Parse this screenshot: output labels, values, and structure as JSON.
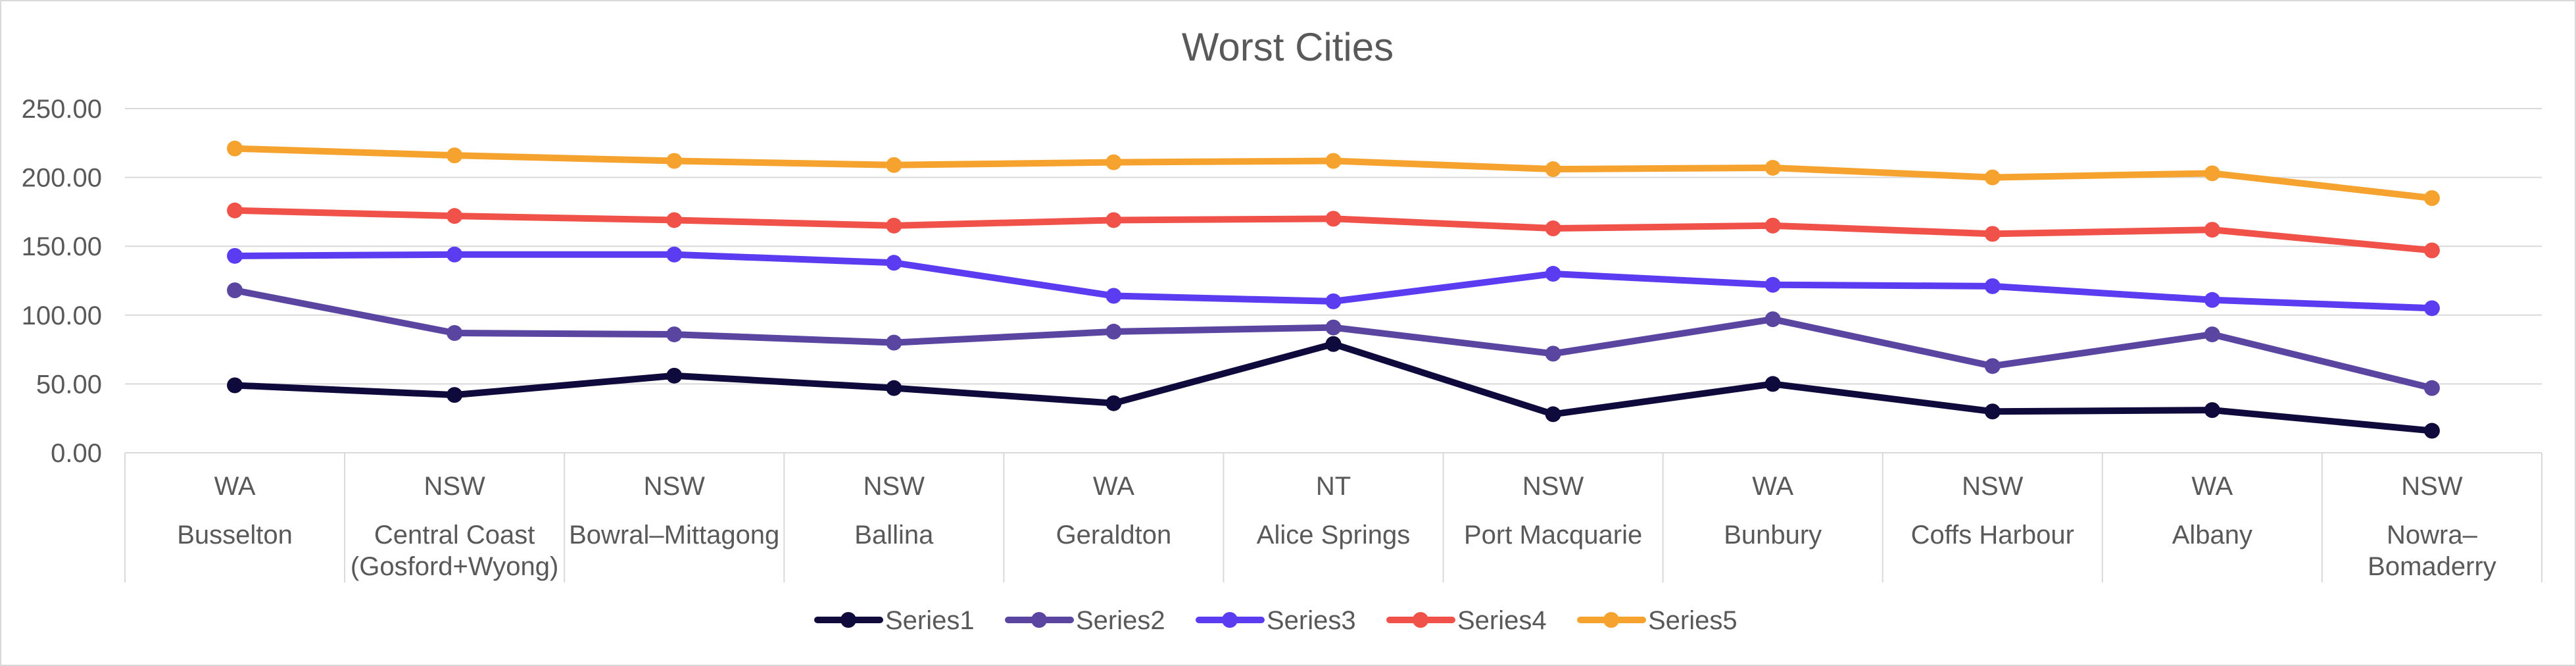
{
  "chart_data": {
    "type": "line",
    "title": "Worst Cities",
    "xlabel": "",
    "ylabel": "",
    "ylim": [
      0,
      250
    ],
    "yticks": [
      "0.00",
      "50.00",
      "100.00",
      "150.00",
      "200.00",
      "250.00"
    ],
    "grid": true,
    "legend_position": "bottom",
    "categories": [
      {
        "state": "WA",
        "city": [
          "Busselton"
        ]
      },
      {
        "state": "NSW",
        "city": [
          "Central Coast",
          "(Gosford+Wyong)"
        ]
      },
      {
        "state": "NSW",
        "city": [
          "Bowral–Mittagong"
        ]
      },
      {
        "state": "NSW",
        "city": [
          "Ballina"
        ]
      },
      {
        "state": "WA",
        "city": [
          "Geraldton"
        ]
      },
      {
        "state": "NT",
        "city": [
          "Alice Springs"
        ]
      },
      {
        "state": "NSW",
        "city": [
          "Port Macquarie"
        ]
      },
      {
        "state": "WA",
        "city": [
          "Bunbury"
        ]
      },
      {
        "state": "NSW",
        "city": [
          "Coffs Harbour"
        ]
      },
      {
        "state": "WA",
        "city": [
          "Albany"
        ]
      },
      {
        "state": "NSW",
        "city": [
          "Nowra–",
          "Bomaderry"
        ]
      }
    ],
    "series": [
      {
        "name": "Series1",
        "color": "#0f0a3c",
        "values": [
          49,
          42,
          56,
          47,
          36,
          79,
          28,
          50,
          30,
          31,
          16
        ]
      },
      {
        "name": "Series2",
        "color": "#5a45a0",
        "values": [
          118,
          87,
          86,
          80,
          88,
          91,
          72,
          97,
          63,
          86,
          47
        ]
      },
      {
        "name": "Series3",
        "color": "#5b3cf0",
        "values": [
          143,
          144,
          144,
          138,
          114,
          110,
          130,
          122,
          121,
          111,
          105
        ]
      },
      {
        "name": "Series4",
        "color": "#f0524a",
        "values": [
          176,
          172,
          169,
          165,
          169,
          170,
          163,
          165,
          159,
          162,
          147
        ]
      },
      {
        "name": "Series5",
        "color": "#f5a32e",
        "values": [
          221,
          216,
          212,
          209,
          211,
          212,
          206,
          207,
          200,
          203,
          185
        ]
      }
    ]
  }
}
